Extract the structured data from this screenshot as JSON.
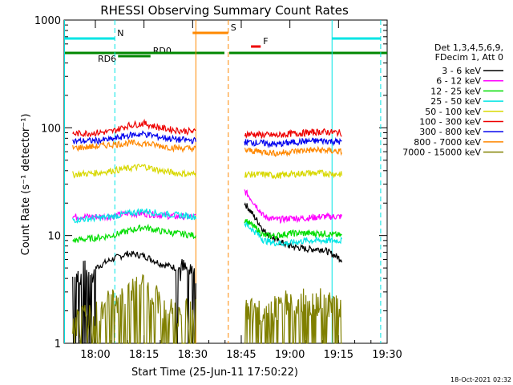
{
  "chart_data": {
    "type": "line",
    "title": "RHESSI Observing Summary Count Rates",
    "xlabel": "Start Time (25-Jun-11 17:50:22)",
    "ylabel": "Count Rate (s⁻¹ detector⁻¹)",
    "yscale": "log",
    "ylim": [
      1,
      1000
    ],
    "xlim": [
      "17:50:22",
      "19:30"
    ],
    "x_ticks": [
      "18:00",
      "18:15",
      "18:30",
      "18:45",
      "19:00",
      "19:15",
      "19:30"
    ],
    "y_ticks": [
      "1",
      "10",
      "100",
      "1000"
    ],
    "legend_header": [
      "Det 1,3,4,5,6,9,",
      "FDecim 1, Att 0"
    ],
    "legend_position": "right",
    "footer": "18-Oct-2021 02:32",
    "gaps": [
      [
        "18:31",
        "18:46"
      ]
    ],
    "series": [
      {
        "name": "3 - 6 keV",
        "color": "#000000",
        "values": {
          "seg1": [
            [
              "17:53",
              4
            ],
            [
              "17:56",
              4.5
            ],
            [
              "18:00",
              5
            ],
            [
              "18:05",
              6
            ],
            [
              "18:10",
              6.8
            ],
            [
              "18:15",
              6.5
            ],
            [
              "18:20",
              5.5
            ],
            [
              "18:25",
              5
            ],
            [
              "18:31",
              4.5
            ]
          ],
          "seg2": [
            [
              "18:46",
              20
            ],
            [
              "18:49",
              15
            ],
            [
              "18:52",
              11
            ],
            [
              "18:56",
              9
            ],
            [
              "19:00",
              8
            ],
            [
              "19:05",
              7.5
            ],
            [
              "19:10",
              7.5
            ],
            [
              "19:16",
              6
            ]
          ]
        }
      },
      {
        "name": "6 - 12 keV",
        "color": "#ff00ff",
        "values": {
          "seg1": [
            [
              "17:53",
              15
            ],
            [
              "18:00",
              15
            ],
            [
              "18:05",
              15
            ],
            [
              "18:10",
              16
            ],
            [
              "18:15",
              16
            ],
            [
              "18:20",
              15.5
            ],
            [
              "18:25",
              15
            ],
            [
              "18:31",
              15
            ]
          ],
          "seg2": [
            [
              "18:46",
              26
            ],
            [
              "18:49",
              20
            ],
            [
              "18:52",
              15
            ],
            [
              "18:56",
              14
            ],
            [
              "19:00",
              14.5
            ],
            [
              "19:05",
              14.5
            ],
            [
              "19:10",
              15
            ],
            [
              "19:16",
              15
            ]
          ]
        }
      },
      {
        "name": "12 - 25 keV",
        "color": "#00dd00",
        "values": {
          "seg1": [
            [
              "17:53",
              9
            ],
            [
              "18:00",
              9.5
            ],
            [
              "18:05",
              10
            ],
            [
              "18:10",
              11
            ],
            [
              "18:15",
              12
            ],
            [
              "18:20",
              11
            ],
            [
              "18:25",
              10.5
            ],
            [
              "18:31",
              10
            ]
          ],
          "seg2": [
            [
              "18:46",
              14
            ],
            [
              "18:49",
              12
            ],
            [
              "18:52",
              10
            ],
            [
              "18:56",
              10
            ],
            [
              "19:00",
              10.5
            ],
            [
              "19:05",
              10.5
            ],
            [
              "19:10",
              10.5
            ],
            [
              "19:16",
              10
            ]
          ]
        }
      },
      {
        "name": "25 - 50 keV",
        "color": "#00e5e5",
        "values": {
          "seg1": [
            [
              "17:53",
              14
            ],
            [
              "18:00",
              14.5
            ],
            [
              "18:05",
              15
            ],
            [
              "18:10",
              16
            ],
            [
              "18:15",
              17
            ],
            [
              "18:20",
              16
            ],
            [
              "18:25",
              15.5
            ],
            [
              "18:31",
              15
            ]
          ],
          "seg2": [
            [
              "18:46",
              13
            ],
            [
              "18:49",
              11
            ],
            [
              "18:52",
              9
            ],
            [
              "18:56",
              8.5
            ],
            [
              "19:00",
              8.5
            ],
            [
              "19:05",
              9
            ],
            [
              "19:10",
              9
            ],
            [
              "19:16",
              9
            ]
          ]
        }
      },
      {
        "name": "50 - 100 keV",
        "color": "#d8d800",
        "values": {
          "seg1": [
            [
              "17:53",
              37
            ],
            [
              "18:00",
              38
            ],
            [
              "18:05",
              40
            ],
            [
              "18:10",
              42
            ],
            [
              "18:15",
              44
            ],
            [
              "18:20",
              40
            ],
            [
              "18:25",
              38
            ],
            [
              "18:31",
              37
            ]
          ],
          "seg2": [
            [
              "18:46",
              37
            ],
            [
              "18:52",
              37
            ],
            [
              "18:56",
              36
            ],
            [
              "19:00",
              37
            ],
            [
              "19:05",
              38
            ],
            [
              "19:10",
              38
            ],
            [
              "19:16",
              37
            ]
          ]
        }
      },
      {
        "name": "100 - 300 keV",
        "color": "#ee0000",
        "values": {
          "seg1": [
            [
              "17:53",
              88
            ],
            [
              "18:00",
              90
            ],
            [
              "18:05",
              92
            ],
            [
              "18:10",
              105
            ],
            [
              "18:15",
              110
            ],
            [
              "18:20",
              100
            ],
            [
              "18:25",
              95
            ],
            [
              "18:31",
              92
            ]
          ],
          "seg2": [
            [
              "18:46",
              88
            ],
            [
              "18:52",
              86
            ],
            [
              "18:56",
              85
            ],
            [
              "19:00",
              88
            ],
            [
              "19:05",
              90
            ],
            [
              "19:10",
              92
            ],
            [
              "19:16",
              90
            ]
          ]
        }
      },
      {
        "name": "300 - 800 keV",
        "color": "#0000ee",
        "values": {
          "seg1": [
            [
              "17:53",
              75
            ],
            [
              "18:00",
              76
            ],
            [
              "18:05",
              78
            ],
            [
              "18:10",
              85
            ],
            [
              "18:15",
              88
            ],
            [
              "18:20",
              82
            ],
            [
              "18:25",
              78
            ],
            [
              "18:31",
              76
            ]
          ],
          "seg2": [
            [
              "18:46",
              74
            ],
            [
              "18:52",
              72
            ],
            [
              "18:56",
              70
            ],
            [
              "19:00",
              73
            ],
            [
              "19:05",
              75
            ],
            [
              "19:10",
              76
            ],
            [
              "19:16",
              74
            ]
          ]
        }
      },
      {
        "name": "800 - 7000 keV",
        "color": "#ff8800",
        "values": {
          "seg1": [
            [
              "17:53",
              65
            ],
            [
              "18:00",
              67
            ],
            [
              "18:05",
              70
            ],
            [
              "18:10",
              72
            ],
            [
              "18:15",
              72
            ],
            [
              "18:20",
              68
            ],
            [
              "18:25",
              65
            ],
            [
              "18:31",
              64
            ]
          ],
          "seg2": [
            [
              "18:46",
              62
            ],
            [
              "18:52",
              60
            ],
            [
              "18:56",
              58
            ],
            [
              "19:00",
              60
            ],
            [
              "19:05",
              62
            ],
            [
              "19:10",
              62
            ],
            [
              "19:16",
              60
            ]
          ]
        }
      },
      {
        "name": "7000 - 15000 keV",
        "color": "#808000",
        "values": {
          "seg1": [
            [
              "17:53",
              1.5
            ],
            [
              "18:00",
              2
            ],
            [
              "18:05",
              2.5
            ],
            [
              "18:10",
              3
            ],
            [
              "18:15",
              3.5
            ],
            [
              "18:20",
              2.5
            ],
            [
              "18:25",
              2
            ],
            [
              "18:31",
              2
            ]
          ],
          "seg2": [
            [
              "18:46",
              2
            ],
            [
              "18:52",
              2
            ],
            [
              "18:56",
              2.2
            ],
            [
              "19:00",
              2.5
            ],
            [
              "19:05",
              2.5
            ],
            [
              "19:10",
              2.5
            ],
            [
              "19:16",
              2
            ]
          ]
        }
      }
    ],
    "annotations": [
      {
        "label": "N",
        "color": "#00e5e5",
        "start": "17:50:22",
        "end": "18:06"
      },
      {
        "label": "",
        "color": "#00e5e5",
        "start": "19:13",
        "end": "19:28"
      },
      {
        "label": "S",
        "color": "#ff8800",
        "start": "18:30",
        "end": "18:41"
      },
      {
        "label": "F",
        "color": "#ee0000",
        "start": "18:48",
        "end": "18:51"
      },
      {
        "label": "RD0",
        "color": "#008800",
        "start": "18:07",
        "end": "18:17"
      },
      {
        "label": "RD6",
        "color": "#008800",
        "start": "17:50:22",
        "end": "18:07"
      }
    ]
  }
}
